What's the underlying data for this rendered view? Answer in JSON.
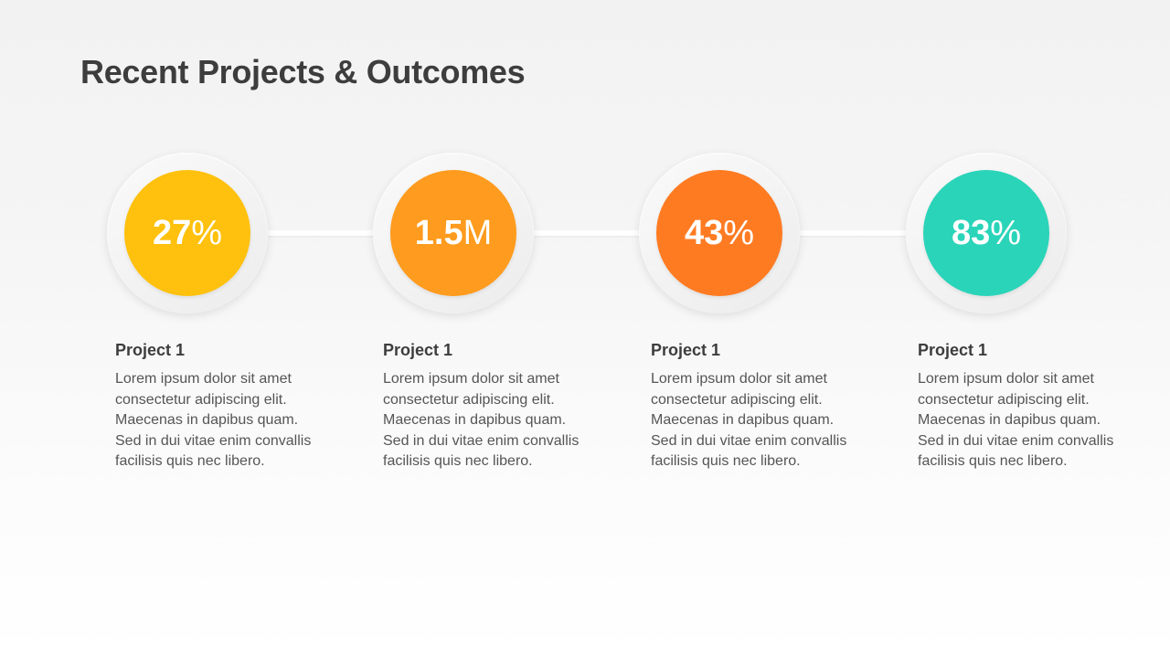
{
  "title": "Recent Projects & Outcomes",
  "items": [
    {
      "value": "27",
      "unit": "%",
      "color": "#ffc10d",
      "title": "Project 1",
      "description": "Lorem ipsum dolor sit amet consectetur adipiscing elit. Maecenas in dapibus quam. Sed in dui vitae enim convallis facilisis quis nec libero."
    },
    {
      "value": "1.5",
      "unit": "M",
      "color": "#ff9b1e",
      "title": "Project 1",
      "description": "Lorem ipsum dolor sit amet consectetur adipiscing elit. Maecenas in dapibus quam. Sed in dui vitae enim convallis facilisis quis nec libero."
    },
    {
      "value": "43",
      "unit": "%",
      "color": "#ff7b22",
      "title": "Project 1",
      "description": "Lorem ipsum dolor sit amet consectetur adipiscing elit. Maecenas in dapibus quam. Sed in dui vitae enim convallis facilisis quis nec libero."
    },
    {
      "value": "83",
      "unit": "%",
      "color": "#2ad4b9",
      "title": "Project 1",
      "description": "Lorem ipsum dolor sit amet consectetur adipiscing elit. Maecenas in dapibus quam. Sed in dui vitae enim convallis facilisis quis nec libero."
    }
  ]
}
